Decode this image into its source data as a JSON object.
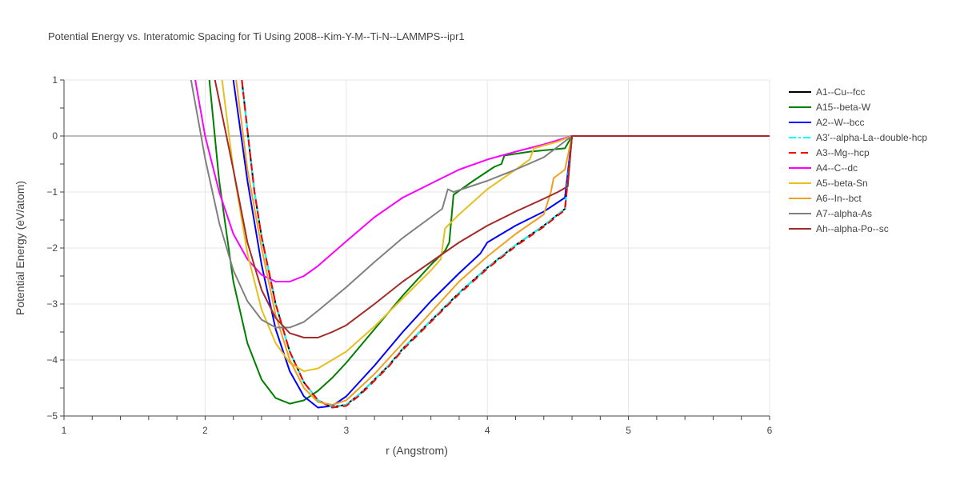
{
  "chart_data": {
    "type": "line",
    "title": "Potential Energy vs. Interatomic Spacing for Ti Using 2008--Kim-Y-M--Ti-N--LAMMPS--ipr1",
    "xlabel": "r (Angstrom)",
    "ylabel": "Potential Energy (eV/atom)",
    "xlim": [
      1,
      6
    ],
    "ylim": [
      -5,
      1
    ],
    "xticks": [
      1,
      2,
      3,
      4,
      5,
      6
    ],
    "yticks": [
      1,
      0,
      -1,
      -2,
      -3,
      -4,
      -5
    ],
    "xtick_labels": [
      "1",
      "2",
      "3",
      "4",
      "5",
      "6"
    ],
    "ytick_labels": [
      "1",
      "0",
      "−1",
      "−2",
      "−3",
      "−4",
      "−5"
    ],
    "grid": true,
    "legend": "right",
    "series": [
      {
        "name": "A1--Cu--fcc",
        "color": "#000000",
        "dash": "solid",
        "points": [
          [
            2.26,
            1.0
          ],
          [
            2.3,
            0.1
          ],
          [
            2.35,
            -1.0
          ],
          [
            2.4,
            -1.8
          ],
          [
            2.5,
            -3.0
          ],
          [
            2.6,
            -3.85
          ],
          [
            2.7,
            -4.4
          ],
          [
            2.8,
            -4.72
          ],
          [
            2.9,
            -4.84
          ],
          [
            3.0,
            -4.8
          ],
          [
            3.1,
            -4.6
          ],
          [
            3.2,
            -4.35
          ],
          [
            3.3,
            -4.1
          ],
          [
            3.4,
            -3.8
          ],
          [
            3.6,
            -3.3
          ],
          [
            3.8,
            -2.8
          ],
          [
            4.0,
            -2.35
          ],
          [
            4.2,
            -1.95
          ],
          [
            4.4,
            -1.6
          ],
          [
            4.55,
            -1.3
          ],
          [
            4.6,
            0.0
          ],
          [
            6.0,
            0.0
          ]
        ]
      },
      {
        "name": "A15--beta-W",
        "color": "#008000",
        "dash": "solid",
        "points": [
          [
            2.03,
            1.0
          ],
          [
            2.1,
            -0.8
          ],
          [
            2.2,
            -2.6
          ],
          [
            2.3,
            -3.7
          ],
          [
            2.4,
            -4.35
          ],
          [
            2.5,
            -4.68
          ],
          [
            2.6,
            -4.78
          ],
          [
            2.7,
            -4.72
          ],
          [
            2.8,
            -4.55
          ],
          [
            2.9,
            -4.32
          ],
          [
            3.0,
            -4.05
          ],
          [
            3.2,
            -3.45
          ],
          [
            3.4,
            -2.85
          ],
          [
            3.6,
            -2.3
          ],
          [
            3.7,
            -2.05
          ],
          [
            3.73,
            -1.9
          ],
          [
            3.76,
            -1.05
          ],
          [
            3.9,
            -0.8
          ],
          [
            4.05,
            -0.55
          ],
          [
            4.1,
            -0.5
          ],
          [
            4.12,
            -0.35
          ],
          [
            4.3,
            -0.28
          ],
          [
            4.55,
            -0.22
          ],
          [
            4.6,
            0.0
          ],
          [
            6.0,
            0.0
          ]
        ]
      },
      {
        "name": "A2--W--bcc",
        "color": "#0000ff",
        "dash": "solid",
        "points": [
          [
            2.2,
            1.0
          ],
          [
            2.3,
            -0.8
          ],
          [
            2.4,
            -2.3
          ],
          [
            2.5,
            -3.45
          ],
          [
            2.6,
            -4.2
          ],
          [
            2.7,
            -4.65
          ],
          [
            2.8,
            -4.85
          ],
          [
            2.9,
            -4.82
          ],
          [
            3.0,
            -4.65
          ],
          [
            3.2,
            -4.1
          ],
          [
            3.4,
            -3.5
          ],
          [
            3.6,
            -2.95
          ],
          [
            3.8,
            -2.45
          ],
          [
            3.95,
            -2.1
          ],
          [
            4.0,
            -1.9
          ],
          [
            4.2,
            -1.6
          ],
          [
            4.4,
            -1.35
          ],
          [
            4.55,
            -1.1
          ],
          [
            4.6,
            0.0
          ],
          [
            6.0,
            0.0
          ]
        ]
      },
      {
        "name": "A3'--alpha-La--double-hcp",
        "color": "#00ffff",
        "dash": "dashdot",
        "points": [
          [
            2.26,
            1.0
          ],
          [
            2.3,
            0.1
          ],
          [
            2.35,
            -1.0
          ],
          [
            2.4,
            -1.8
          ],
          [
            2.5,
            -3.0
          ],
          [
            2.6,
            -3.85
          ],
          [
            2.7,
            -4.4
          ],
          [
            2.8,
            -4.72
          ],
          [
            2.9,
            -4.84
          ],
          [
            3.0,
            -4.8
          ],
          [
            3.1,
            -4.6
          ],
          [
            3.2,
            -4.35
          ],
          [
            3.3,
            -4.1
          ],
          [
            3.4,
            -3.8
          ],
          [
            3.6,
            -3.3
          ],
          [
            3.8,
            -2.8
          ],
          [
            4.0,
            -2.35
          ],
          [
            4.2,
            -1.95
          ],
          [
            4.4,
            -1.6
          ],
          [
            4.55,
            -1.3
          ],
          [
            4.6,
            0.0
          ],
          [
            6.0,
            0.0
          ]
        ]
      },
      {
        "name": "A3--Mg--hcp",
        "color": "#ff0000",
        "dash": "dash",
        "points": [
          [
            2.26,
            1.0
          ],
          [
            2.3,
            0.1
          ],
          [
            2.35,
            -1.0
          ],
          [
            2.4,
            -1.8
          ],
          [
            2.5,
            -3.0
          ],
          [
            2.6,
            -3.85
          ],
          [
            2.7,
            -4.4
          ],
          [
            2.8,
            -4.72
          ],
          [
            2.9,
            -4.85
          ],
          [
            3.0,
            -4.82
          ],
          [
            3.1,
            -4.62
          ],
          [
            3.2,
            -4.37
          ],
          [
            3.3,
            -4.12
          ],
          [
            3.4,
            -3.82
          ],
          [
            3.6,
            -3.32
          ],
          [
            3.8,
            -2.82
          ],
          [
            4.0,
            -2.37
          ],
          [
            4.2,
            -1.97
          ],
          [
            4.4,
            -1.62
          ],
          [
            4.55,
            -1.32
          ],
          [
            4.6,
            0.0
          ],
          [
            6.0,
            0.0
          ]
        ]
      },
      {
        "name": "A4--C--dc",
        "color": "#ff00ff",
        "dash": "solid",
        "points": [
          [
            1.93,
            1.0
          ],
          [
            2.0,
            0.0
          ],
          [
            2.1,
            -1.0
          ],
          [
            2.2,
            -1.75
          ],
          [
            2.3,
            -2.2
          ],
          [
            2.4,
            -2.48
          ],
          [
            2.5,
            -2.6
          ],
          [
            2.6,
            -2.6
          ],
          [
            2.7,
            -2.5
          ],
          [
            2.8,
            -2.32
          ],
          [
            3.0,
            -1.88
          ],
          [
            3.2,
            -1.45
          ],
          [
            3.4,
            -1.1
          ],
          [
            3.6,
            -0.85
          ],
          [
            3.8,
            -0.6
          ],
          [
            4.0,
            -0.42
          ],
          [
            4.2,
            -0.28
          ],
          [
            4.4,
            -0.15
          ],
          [
            4.6,
            0.0
          ],
          [
            6.0,
            0.0
          ]
        ]
      },
      {
        "name": "A5--beta-Sn",
        "color": "#e6c020",
        "dash": "solid",
        "points": [
          [
            2.12,
            1.0
          ],
          [
            2.2,
            -0.6
          ],
          [
            2.3,
            -2.1
          ],
          [
            2.4,
            -3.1
          ],
          [
            2.5,
            -3.7
          ],
          [
            2.6,
            -4.05
          ],
          [
            2.7,
            -4.2
          ],
          [
            2.8,
            -4.15
          ],
          [
            3.0,
            -3.85
          ],
          [
            3.2,
            -3.4
          ],
          [
            3.4,
            -2.9
          ],
          [
            3.6,
            -2.4
          ],
          [
            3.67,
            -2.2
          ],
          [
            3.7,
            -1.65
          ],
          [
            3.8,
            -1.4
          ],
          [
            4.0,
            -0.95
          ],
          [
            4.2,
            -0.6
          ],
          [
            4.3,
            -0.42
          ],
          [
            4.33,
            -0.22
          ],
          [
            4.5,
            -0.1
          ],
          [
            4.6,
            0.0
          ],
          [
            6.0,
            0.0
          ]
        ]
      },
      {
        "name": "A6--In--bct",
        "color": "#f0a020",
        "dash": "solid",
        "points": [
          [
            2.22,
            1.0
          ],
          [
            2.3,
            -0.6
          ],
          [
            2.4,
            -2.0
          ],
          [
            2.5,
            -3.2
          ],
          [
            2.6,
            -4.0
          ],
          [
            2.7,
            -4.5
          ],
          [
            2.8,
            -4.75
          ],
          [
            2.9,
            -4.8
          ],
          [
            3.0,
            -4.72
          ],
          [
            3.2,
            -4.25
          ],
          [
            3.4,
            -3.7
          ],
          [
            3.6,
            -3.15
          ],
          [
            3.8,
            -2.6
          ],
          [
            4.0,
            -2.15
          ],
          [
            4.2,
            -1.75
          ],
          [
            4.4,
            -1.4
          ],
          [
            4.45,
            -1.0
          ],
          [
            4.47,
            -0.75
          ],
          [
            4.55,
            -0.6
          ],
          [
            4.6,
            0.0
          ],
          [
            6.0,
            0.0
          ]
        ]
      },
      {
        "name": "A7--alpha-As",
        "color": "#808080",
        "dash": "solid",
        "points": [
          [
            1.9,
            1.0
          ],
          [
            2.0,
            -0.4
          ],
          [
            2.1,
            -1.55
          ],
          [
            2.2,
            -2.4
          ],
          [
            2.3,
            -2.95
          ],
          [
            2.4,
            -3.28
          ],
          [
            2.5,
            -3.42
          ],
          [
            2.6,
            -3.42
          ],
          [
            2.7,
            -3.32
          ],
          [
            2.8,
            -3.12
          ],
          [
            3.0,
            -2.7
          ],
          [
            3.2,
            -2.25
          ],
          [
            3.4,
            -1.82
          ],
          [
            3.6,
            -1.45
          ],
          [
            3.68,
            -1.3
          ],
          [
            3.72,
            -0.95
          ],
          [
            3.76,
            -1.0
          ],
          [
            4.0,
            -0.8
          ],
          [
            4.2,
            -0.6
          ],
          [
            4.4,
            -0.38
          ],
          [
            4.6,
            0.0
          ],
          [
            6.0,
            0.0
          ]
        ]
      },
      {
        "name": "Ah--alpha-Po--sc",
        "color": "#a52a2a",
        "dash": "solid",
        "points": [
          [
            2.07,
            1.0
          ],
          [
            2.2,
            -0.6
          ],
          [
            2.3,
            -1.9
          ],
          [
            2.4,
            -2.75
          ],
          [
            2.5,
            -3.25
          ],
          [
            2.6,
            -3.52
          ],
          [
            2.7,
            -3.6
          ],
          [
            2.8,
            -3.6
          ],
          [
            2.9,
            -3.5
          ],
          [
            3.0,
            -3.38
          ],
          [
            3.2,
            -3.0
          ],
          [
            3.4,
            -2.6
          ],
          [
            3.6,
            -2.25
          ],
          [
            3.8,
            -1.9
          ],
          [
            4.0,
            -1.6
          ],
          [
            4.2,
            -1.35
          ],
          [
            4.4,
            -1.12
          ],
          [
            4.5,
            -1.0
          ],
          [
            4.57,
            -0.9
          ],
          [
            4.6,
            0.0
          ],
          [
            6.0,
            0.0
          ]
        ]
      }
    ]
  }
}
